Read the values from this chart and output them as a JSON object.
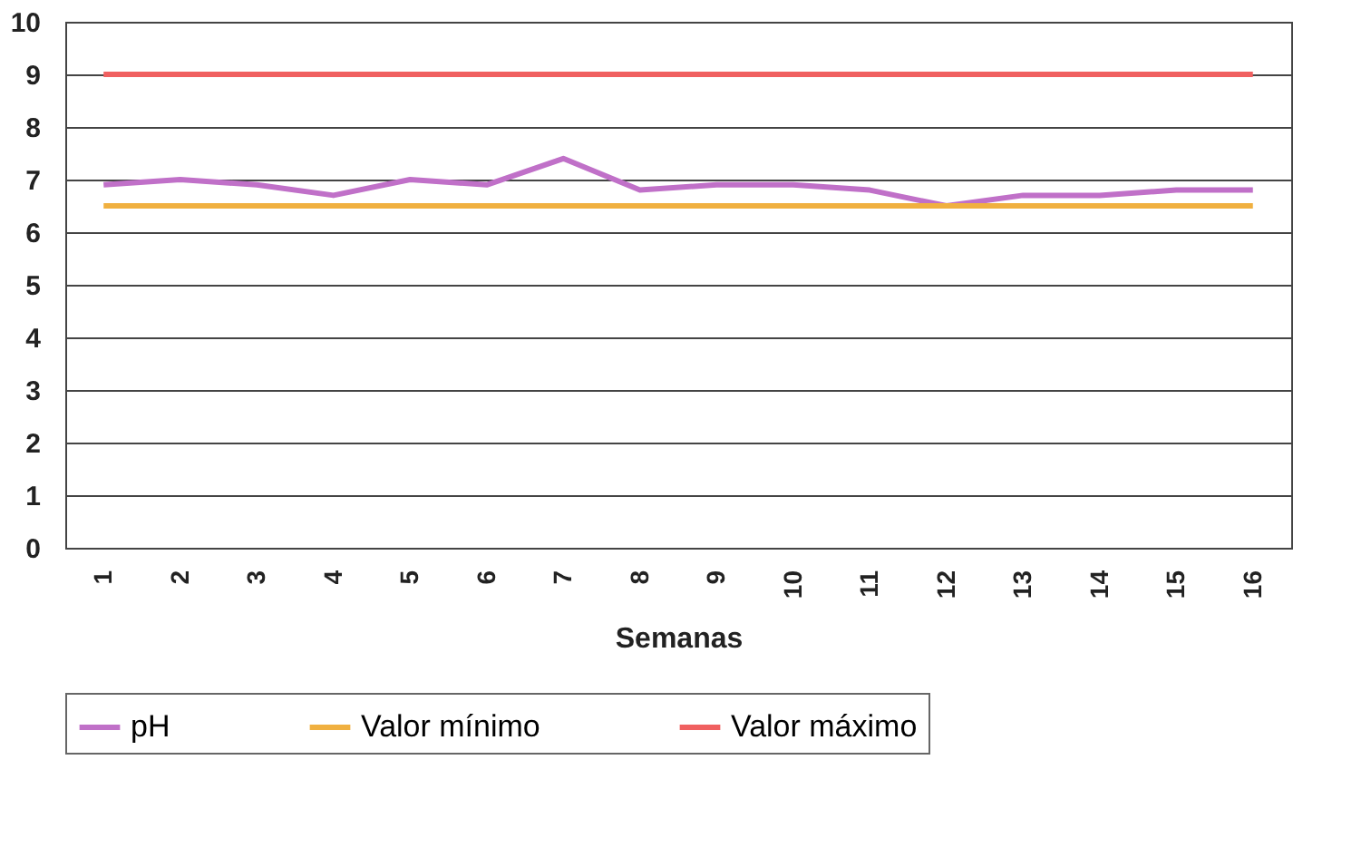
{
  "chart_data": {
    "type": "line",
    "xlabel": "Semanas",
    "categories": [
      "1",
      "2",
      "3",
      "4",
      "5",
      "6",
      "7",
      "8",
      "9",
      "10",
      "11",
      "12",
      "13",
      "14",
      "15",
      "16"
    ],
    "series": [
      {
        "name": "pH",
        "color": "#c070c8",
        "values": [
          6.9,
          7.0,
          6.9,
          6.7,
          7.0,
          6.9,
          7.4,
          6.8,
          6.9,
          6.9,
          6.8,
          6.5,
          6.7,
          6.7,
          6.8,
          6.8
        ]
      },
      {
        "name": "Valor mínimo",
        "color": "#f0b040",
        "values": [
          6.5,
          6.5,
          6.5,
          6.5,
          6.5,
          6.5,
          6.5,
          6.5,
          6.5,
          6.5,
          6.5,
          6.5,
          6.5,
          6.5,
          6.5,
          6.5
        ]
      },
      {
        "name": "Valor máximo",
        "color": "#f06060",
        "values": [
          9,
          9,
          9,
          9,
          9,
          9,
          9,
          9,
          9,
          9,
          9,
          9,
          9,
          9,
          9,
          9
        ]
      }
    ],
    "ylim": [
      0,
      10
    ],
    "yticks": [
      0,
      1,
      2,
      3,
      4,
      5,
      6,
      7,
      8,
      9,
      10
    ],
    "grid": "y",
    "legend": "bottom",
    "marker": "none",
    "line_style": "solid"
  }
}
